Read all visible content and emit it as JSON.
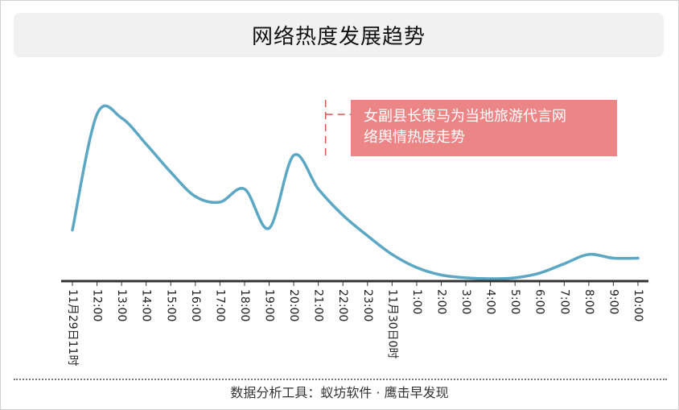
{
  "header": {
    "title": "网络热度发展趋势"
  },
  "annotation": {
    "line1": "女副县长策马为当地旅游代言网",
    "line2": "络舆情热度走势"
  },
  "footer": {
    "text": "数据分析工具：蚁坊软件 · 鹰击早发现"
  },
  "colors": {
    "line": "#5ba7c4",
    "annotation_bg": "#ec8585",
    "axis": "#333333",
    "title_bar_bg": "#f1f1f1"
  },
  "chart_data": {
    "type": "line",
    "title": "网络热度发展趋势",
    "xlabel": "",
    "ylabel": "",
    "grid": false,
    "y_axis_shown": false,
    "categories": [
      "11月29日11时",
      "12:00",
      "13:00",
      "14:00",
      "15:00",
      "16:00",
      "17:00",
      "18:00",
      "19:00",
      "20:00",
      "21:00",
      "22:00",
      "23:00",
      "11月30日0时",
      "1:00",
      "2:00",
      "3:00",
      "4:00",
      "5:00",
      "6:00",
      "7:00",
      "8:00",
      "9:00",
      "10:00"
    ],
    "ylim": [
      0,
      100
    ],
    "series": [
      {
        "values": [
          26,
          88,
          86,
          72,
          57,
          44,
          41,
          48,
          27,
          66,
          48,
          34,
          23,
          13,
          6,
          2,
          0.5,
          0,
          0.5,
          3,
          8,
          13,
          11,
          11
        ]
      }
    ],
    "notes": [
      {
        "x": "21:00",
        "text": "女副县长策马为当地旅游代言网络舆情热度走势"
      }
    ]
  }
}
